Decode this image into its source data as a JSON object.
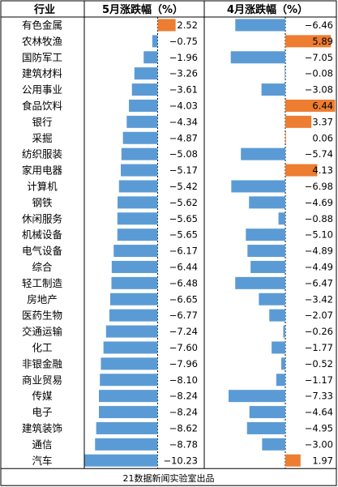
{
  "chart_data": {
    "type": "bar",
    "header": {
      "category": "行业",
      "may": "5月涨跌幅（%）",
      "april": "4月涨跌幅（%）"
    },
    "categories": [
      "有色金属",
      "农林牧渔",
      "国防军工",
      "建筑材料",
      "公用事业",
      "食品饮料",
      "银行",
      "采掘",
      "纺织服装",
      "家用电器",
      "计算机",
      "钢铁",
      "休闲服务",
      "机械设备",
      "电气设备",
      "综合",
      "轻工制造",
      "房地产",
      "医药生物",
      "交通运输",
      "化工",
      "非银金融",
      "商业贸易",
      "传媒",
      "电子",
      "建筑装饰",
      "通信",
      "汽车"
    ],
    "series": [
      {
        "name": "5月涨跌幅（%）",
        "values": [
          2.52,
          -0.75,
          -1.96,
          -3.26,
          -3.61,
          -4.03,
          -4.34,
          -4.87,
          -5.08,
          -5.17,
          -5.42,
          -5.62,
          -5.65,
          -5.65,
          -6.17,
          -6.44,
          -6.48,
          -6.65,
          -6.77,
          -7.24,
          -7.6,
          -7.96,
          -8.1,
          -8.24,
          -8.24,
          -8.62,
          -8.78,
          -10.23
        ],
        "labels": [
          "2.52",
          "−0.75",
          "−1.96",
          "−3.26",
          "−3.61",
          "−4.03",
          "−4.34",
          "−4.87",
          "−5.08",
          "−5.17",
          "−5.42",
          "−5.62",
          "−5.65",
          "−5.65",
          "−6.17",
          "−6.44",
          "−6.48",
          "−6.65",
          "−6.77",
          "−7.24",
          "−7.60",
          "−7.96",
          "−8.10",
          "−8.24",
          "−8.24",
          "−8.62",
          "−8.78",
          "−10.23"
        ]
      },
      {
        "name": "4月涨跌幅（%）",
        "values": [
          -6.46,
          5.89,
          -7.05,
          -0.08,
          -3.08,
          6.44,
          3.37,
          0.06,
          -5.74,
          4.13,
          -6.98,
          -4.69,
          -0.88,
          -5.1,
          -4.89,
          -4.49,
          -6.47,
          -3.42,
          -2.07,
          -0.26,
          -1.77,
          -0.52,
          -1.17,
          -7.33,
          -4.64,
          -4.95,
          -3.0,
          1.97
        ],
        "labels": [
          "−6.46",
          "5.89",
          "−7.05",
          "−0.08",
          "−3.08",
          "6.44",
          "3.37",
          "0.06",
          "−5.74",
          "4.13",
          "−6.98",
          "−4.69",
          "−0.88",
          "−5.10",
          "−4.89",
          "−4.49",
          "−6.47",
          "−3.42",
          "−2.07",
          "−0.26",
          "−1.77",
          "−0.52",
          "−1.17",
          "−7.33",
          "−4.64",
          "−4.95",
          "−3.00",
          "1.97"
        ]
      }
    ],
    "colors": {
      "negative": "#5b9bd5",
      "positive": "#ed7d31",
      "grid": "#000000"
    },
    "footer": "21数据新闻实验室出品"
  }
}
